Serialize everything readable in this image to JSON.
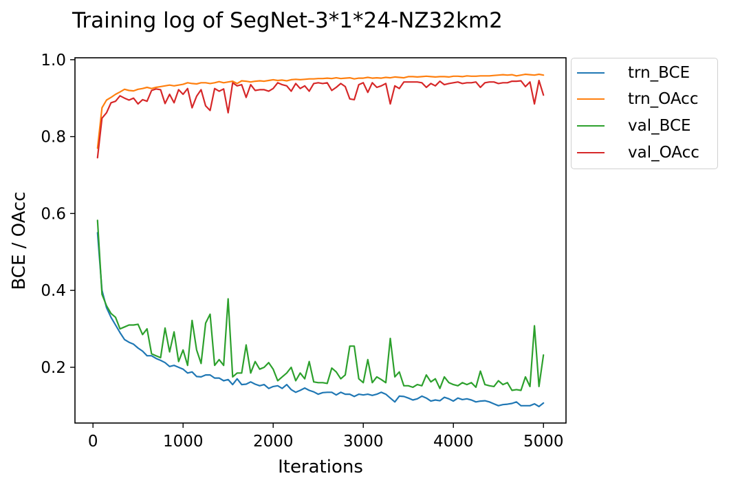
{
  "chart_data": {
    "type": "line",
    "title": "Training log of SegNet-3*1*24-NZ32km2",
    "xlabel": "Iterations",
    "ylabel": "BCE / OAcc",
    "xlim": [
      -200,
      5250
    ],
    "ylim": [
      0.055,
      1.005
    ],
    "xticks": [
      0,
      1000,
      2000,
      3000,
      4000,
      5000
    ],
    "yticks": [
      0.2,
      0.4,
      0.6,
      0.8,
      1.0
    ],
    "grid": false,
    "legend_position": "outside-top-right",
    "x": [
      50,
      100,
      150,
      200,
      250,
      300,
      350,
      400,
      450,
      500,
      550,
      600,
      650,
      700,
      750,
      800,
      850,
      900,
      950,
      1000,
      1050,
      1100,
      1150,
      1200,
      1250,
      1300,
      1350,
      1400,
      1450,
      1500,
      1550,
      1600,
      1650,
      1700,
      1750,
      1800,
      1850,
      1900,
      1950,
      2000,
      2050,
      2100,
      2150,
      2200,
      2250,
      2300,
      2350,
      2400,
      2450,
      2500,
      2550,
      2600,
      2650,
      2700,
      2750,
      2800,
      2850,
      2900,
      2950,
      3000,
      3050,
      3100,
      3150,
      3200,
      3250,
      3300,
      3350,
      3400,
      3450,
      3500,
      3550,
      3600,
      3650,
      3700,
      3750,
      3800,
      3850,
      3900,
      3950,
      4000,
      4050,
      4100,
      4150,
      4200,
      4250,
      4300,
      4350,
      4400,
      4450,
      4500,
      4550,
      4600,
      4650,
      4700,
      4750,
      4800,
      4850,
      4900,
      4950,
      5000
    ],
    "series": [
      {
        "name": "trn_BCE",
        "color": "#1f77b4",
        "values": [
          0.55,
          0.4,
          0.355,
          0.33,
          0.31,
          0.29,
          0.272,
          0.265,
          0.26,
          0.25,
          0.242,
          0.23,
          0.23,
          0.223,
          0.218,
          0.212,
          0.202,
          0.205,
          0.2,
          0.195,
          0.185,
          0.188,
          0.176,
          0.175,
          0.18,
          0.18,
          0.172,
          0.172,
          0.165,
          0.168,
          0.155,
          0.17,
          0.155,
          0.156,
          0.162,
          0.156,
          0.152,
          0.155,
          0.145,
          0.15,
          0.152,
          0.145,
          0.155,
          0.142,
          0.135,
          0.14,
          0.146,
          0.14,
          0.136,
          0.13,
          0.134,
          0.135,
          0.135,
          0.128,
          0.135,
          0.13,
          0.13,
          0.124,
          0.13,
          0.128,
          0.13,
          0.127,
          0.13,
          0.135,
          0.13,
          0.12,
          0.11,
          0.125,
          0.124,
          0.12,
          0.115,
          0.118,
          0.125,
          0.12,
          0.112,
          0.115,
          0.113,
          0.122,
          0.118,
          0.112,
          0.12,
          0.116,
          0.118,
          0.115,
          0.11,
          0.112,
          0.113,
          0.11,
          0.105,
          0.1,
          0.103,
          0.104,
          0.106,
          0.11,
          0.1,
          0.1,
          0.1,
          0.105,
          0.098,
          0.107
        ]
      },
      {
        "name": "trn_OAcc",
        "color": "#ff7f0e",
        "values": [
          0.77,
          0.875,
          0.895,
          0.902,
          0.91,
          0.916,
          0.923,
          0.92,
          0.919,
          0.923,
          0.925,
          0.928,
          0.925,
          0.928,
          0.93,
          0.932,
          0.934,
          0.932,
          0.934,
          0.936,
          0.94,
          0.938,
          0.937,
          0.94,
          0.94,
          0.938,
          0.94,
          0.943,
          0.94,
          0.942,
          0.944,
          0.938,
          0.945,
          0.944,
          0.942,
          0.944,
          0.945,
          0.944,
          0.946,
          0.948,
          0.946,
          0.947,
          0.945,
          0.948,
          0.949,
          0.948,
          0.949,
          0.95,
          0.95,
          0.951,
          0.951,
          0.952,
          0.951,
          0.953,
          0.951,
          0.952,
          0.953,
          0.95,
          0.952,
          0.952,
          0.954,
          0.952,
          0.953,
          0.952,
          0.954,
          0.953,
          0.955,
          0.954,
          0.953,
          0.956,
          0.956,
          0.955,
          0.956,
          0.957,
          0.956,
          0.955,
          0.956,
          0.956,
          0.955,
          0.957,
          0.957,
          0.956,
          0.958,
          0.957,
          0.957,
          0.958,
          0.958,
          0.958,
          0.959,
          0.96,
          0.961,
          0.96,
          0.961,
          0.958,
          0.96,
          0.962,
          0.961,
          0.96,
          0.962,
          0.96
        ]
      },
      {
        "name": "val_BCE",
        "color": "#2ca02c",
        "values": [
          0.582,
          0.39,
          0.36,
          0.34,
          0.33,
          0.3,
          0.305,
          0.31,
          0.31,
          0.312,
          0.285,
          0.3,
          0.235,
          0.23,
          0.225,
          0.302,
          0.24,
          0.292,
          0.215,
          0.245,
          0.205,
          0.322,
          0.245,
          0.21,
          0.315,
          0.338,
          0.205,
          0.22,
          0.205,
          0.378,
          0.175,
          0.185,
          0.185,
          0.258,
          0.185,
          0.215,
          0.195,
          0.2,
          0.212,
          0.195,
          0.165,
          0.175,
          0.185,
          0.2,
          0.165,
          0.185,
          0.17,
          0.215,
          0.162,
          0.16,
          0.16,
          0.158,
          0.198,
          0.188,
          0.17,
          0.18,
          0.255,
          0.255,
          0.17,
          0.16,
          0.22,
          0.16,
          0.175,
          0.168,
          0.16,
          0.275,
          0.175,
          0.188,
          0.152,
          0.152,
          0.148,
          0.155,
          0.152,
          0.18,
          0.162,
          0.17,
          0.145,
          0.175,
          0.16,
          0.155,
          0.152,
          0.16,
          0.155,
          0.16,
          0.148,
          0.19,
          0.155,
          0.152,
          0.15,
          0.165,
          0.155,
          0.16,
          0.14,
          0.142,
          0.14,
          0.175,
          0.15,
          0.308,
          0.15,
          0.232
        ]
      },
      {
        "name": "val_OAcc",
        "color": "#d62728",
        "values": [
          0.745,
          0.848,
          0.862,
          0.888,
          0.892,
          0.906,
          0.9,
          0.895,
          0.9,
          0.885,
          0.896,
          0.892,
          0.92,
          0.924,
          0.922,
          0.886,
          0.91,
          0.888,
          0.922,
          0.91,
          0.925,
          0.875,
          0.905,
          0.922,
          0.88,
          0.868,
          0.925,
          0.918,
          0.924,
          0.862,
          0.94,
          0.932,
          0.935,
          0.902,
          0.935,
          0.92,
          0.922,
          0.922,
          0.918,
          0.925,
          0.94,
          0.935,
          0.932,
          0.918,
          0.938,
          0.925,
          0.932,
          0.918,
          0.938,
          0.94,
          0.938,
          0.94,
          0.92,
          0.928,
          0.938,
          0.93,
          0.898,
          0.896,
          0.935,
          0.94,
          0.915,
          0.94,
          0.928,
          0.932,
          0.938,
          0.885,
          0.932,
          0.925,
          0.942,
          0.942,
          0.942,
          0.942,
          0.94,
          0.928,
          0.938,
          0.932,
          0.944,
          0.935,
          0.938,
          0.94,
          0.942,
          0.938,
          0.94,
          0.94,
          0.942,
          0.928,
          0.94,
          0.942,
          0.942,
          0.938,
          0.94,
          0.94,
          0.944,
          0.944,
          0.945,
          0.93,
          0.942,
          0.885,
          0.946,
          0.908
        ]
      }
    ]
  }
}
